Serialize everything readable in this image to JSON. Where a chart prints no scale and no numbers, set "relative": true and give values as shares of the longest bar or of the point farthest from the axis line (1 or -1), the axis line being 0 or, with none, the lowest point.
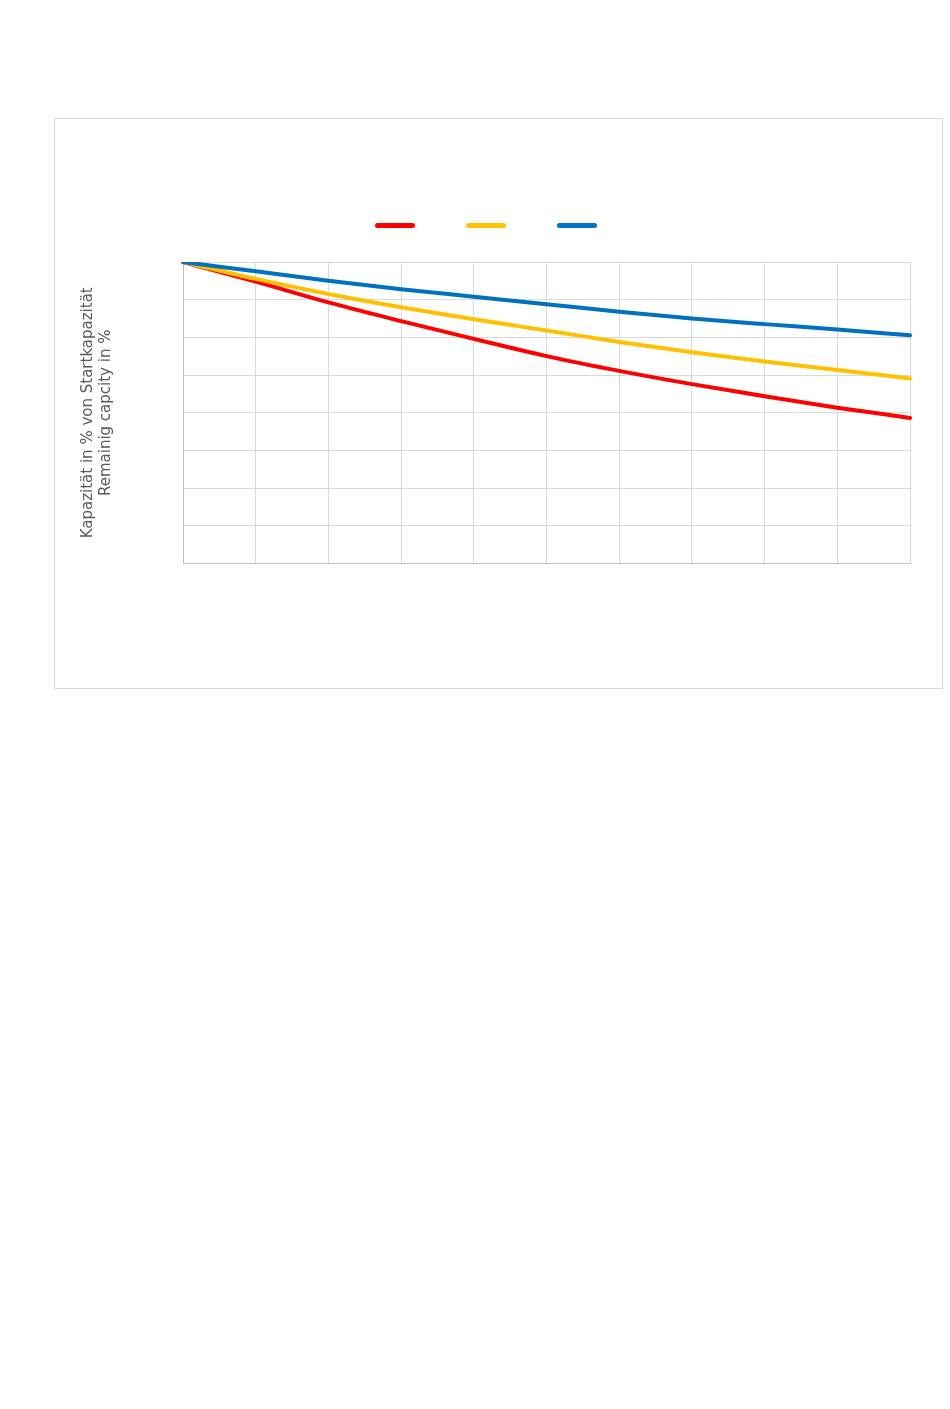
{
  "chart_data": {
    "type": "line",
    "relative": true,
    "ylabel": "Kapazität in % von Startkapazität\nRemainig capcity in %",
    "categories": [
      null,
      null,
      null,
      null,
      null,
      null,
      null,
      null,
      null,
      null,
      null
    ],
    "series": [
      {
        "color": "#ff0000",
        "values": [
          1,
          0.935,
          0.866,
          0.804,
          0.745,
          0.688,
          0.639,
          0.595,
          0.555,
          0.517,
          0.483
        ]
      },
      {
        "color": "#ffc000",
        "values": [
          1,
          0.944,
          0.894,
          0.85,
          0.81,
          0.773,
          0.735,
          0.701,
          0.67,
          0.642,
          0.614
        ]
      },
      {
        "color": "#0070c0",
        "values": [
          1,
          0.969,
          0.938,
          0.91,
          0.885,
          0.86,
          0.835,
          0.813,
          0.794,
          0.776,
          0.757
        ]
      }
    ],
    "grid": true,
    "marker": "none",
    "line_style": "solid"
  }
}
